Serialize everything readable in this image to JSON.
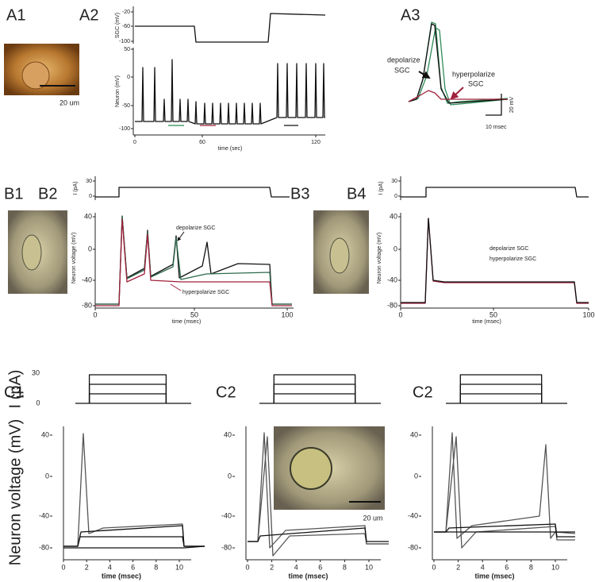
{
  "panels": {
    "A1": {
      "label": "A1",
      "scale": "20 um"
    },
    "A2": {
      "label": "A2",
      "top_y_label": "SGC (mV)",
      "top_yticks": [
        "-20",
        "-60",
        "-100"
      ],
      "bottom_y_label": "Neuron (mV)",
      "bottom_yticks": [
        "50",
        "0",
        "-50",
        "-100"
      ],
      "xticks": [
        "0",
        "60",
        "120"
      ],
      "x_label": "time (sec)"
    },
    "A3": {
      "label": "A3",
      "depolarize": [
        "depolarize",
        "SGC"
      ],
      "hyperpolarize": [
        "hyperpolarize",
        "SGC"
      ],
      "scale_v": "20 mV",
      "scale_t": "10 msec"
    },
    "B1": {
      "label": "B1"
    },
    "B2": {
      "label": "B2",
      "i_label": "I (pA)",
      "i_ticks": [
        "30",
        "0"
      ],
      "y_label": "Neuron voltage (mV)",
      "yticks": [
        "40",
        "0",
        "-40",
        "-80"
      ],
      "xticks": [
        "0",
        "50",
        "100"
      ],
      "x_label": "time (msec)",
      "depolarize": "depolarize SGC",
      "hyperpolarize": "hyperpolarize SGC"
    },
    "B3": {
      "label": "B3"
    },
    "B4": {
      "label": "B4",
      "i_label": "I (pA)",
      "i_ticks": [
        "30",
        "0"
      ],
      "y_label": "Neuron voltage (mV)",
      "yticks": [
        "40",
        "0",
        "-40",
        "-80"
      ],
      "xticks": [
        "0",
        "50",
        "100"
      ],
      "x_label": "time (msec)",
      "depolarize": "depolarize SGC",
      "hyperpolarize": "hyperpolarize SGC"
    },
    "C1": {
      "label": "C1",
      "i_label": "I (pA)",
      "i_ticks": [
        "30",
        "0"
      ],
      "y_label": "Neuron voltage (mV)",
      "yticks": [
        "40",
        "0",
        "-40",
        "-80"
      ],
      "xticks": [
        "0",
        "2",
        "4",
        "6",
        "8",
        "10"
      ],
      "x_label": "time (msec)"
    },
    "C2a": {
      "label": "C2",
      "yticks": [
        "40",
        "0",
        "-40",
        "-80"
      ],
      "xticks": [
        "0",
        "2",
        "4",
        "6",
        "8",
        "10"
      ],
      "x_label": "time (msec)",
      "scale": "20 um"
    },
    "C2b": {
      "label": "C2",
      "yticks": [
        "40",
        "0",
        "-40",
        "-80"
      ],
      "xticks": [
        "0",
        "2",
        "4",
        "6",
        "8",
        "10"
      ],
      "x_label": "time (msec)"
    }
  }
}
